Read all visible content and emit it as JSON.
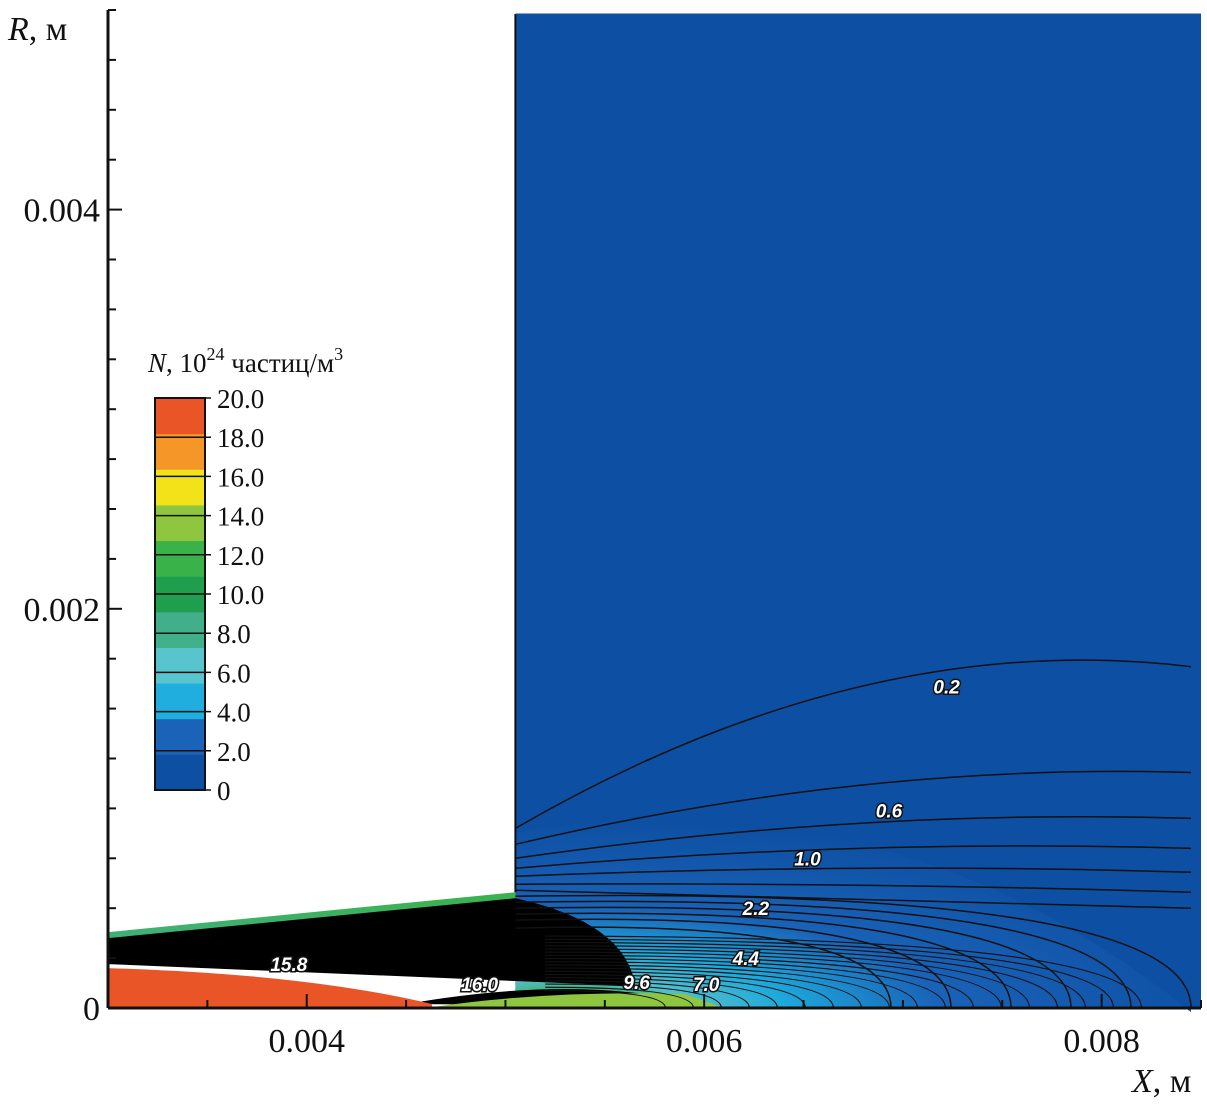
{
  "chart_data": {
    "type": "contour",
    "quantity": "N",
    "xlabel": "X, м",
    "ylabel": "R, м",
    "xlim": [
      0.003,
      0.0085
    ],
    "ylim": [
      0,
      0.005
    ],
    "x_ticks": [
      "0.004",
      "0.006",
      "0.008"
    ],
    "y_ticks": [
      "0",
      "0.002",
      "0.004"
    ],
    "colorbar": {
      "title_prefix": "N, 10",
      "title_exponent": "24",
      "title_suffix": " частиц/м",
      "title_unit_exponent": "3",
      "min": 0,
      "max": 20,
      "labels": [
        "20.0",
        "18.0",
        "16.0",
        "14.0",
        "12.0",
        "10.0",
        "8.0",
        "6.0",
        "4.0",
        "2.0",
        "0"
      ],
      "colors": [
        "#0d4fa3",
        "#1a63b8",
        "#1faede",
        "#58c4cd",
        "#41b08a",
        "#1f9f4e",
        "#39b24a",
        "#8fc63f",
        "#f1e21a",
        "#f49628",
        "#ea5527"
      ]
    },
    "contour_labels": [
      {
        "text": "0.2",
        "x": 0.00722,
        "r": 0.00161
      },
      {
        "text": "0.6",
        "x": 0.00693,
        "r": 0.00099
      },
      {
        "text": "1.0",
        "x": 0.00652,
        "r": 0.00075
      },
      {
        "text": "2.2",
        "x": 0.00626,
        "r": 0.0005
      },
      {
        "text": "4.4",
        "x": 0.00621,
        "r": 0.00025
      },
      {
        "text": "7.0",
        "x": 0.00601,
        "r": 0.00012
      },
      {
        "text": "9.6",
        "x": 0.00566,
        "r": 0.00013
      },
      {
        "text": "16.0",
        "x": 0.00487,
        "r": 0.00012
      },
      {
        "text": "15.8",
        "x": 0.00391,
        "r": 0.00022
      }
    ],
    "geometry": {
      "nozzle_exit_x": 0.00505,
      "nozzle_exit_r": 0.00058,
      "inlet_r": 0.00038,
      "core_r_start": 0.0002,
      "core_end_x": 0.00463
    }
  }
}
